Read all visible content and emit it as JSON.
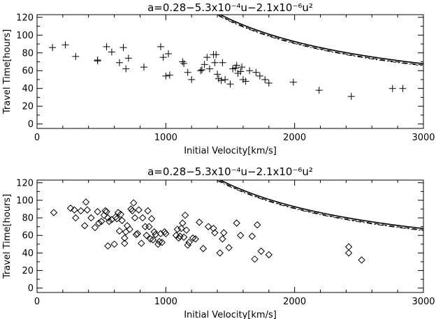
{
  "chart_data": [
    {
      "type": "scatter",
      "title": "a=0.28−5.3x10⁻⁴u−2.1x10⁻⁶u²",
      "xlabel": "Initial Velocity[km/s]",
      "ylabel": "Travel Time[hours]",
      "xlim": [
        0,
        3000
      ],
      "ylim": [
        -5,
        123
      ],
      "xticks": [
        "0",
        "1000",
        "2000",
        "3000"
      ],
      "yticks": [
        "0",
        "20",
        "40",
        "60",
        "80",
        "100",
        "120"
      ],
      "marker": "plus",
      "points": [
        [
          120,
          86
        ],
        [
          220,
          89
        ],
        [
          300,
          76
        ],
        [
          470,
          71
        ],
        [
          470,
          72
        ],
        [
          540,
          87
        ],
        [
          580,
          81
        ],
        [
          640,
          69
        ],
        [
          670,
          86
        ],
        [
          690,
          62
        ],
        [
          710,
          74
        ],
        [
          830,
          64
        ],
        [
          960,
          87
        ],
        [
          980,
          75
        ],
        [
          1000,
          54
        ],
        [
          1020,
          79
        ],
        [
          1030,
          55
        ],
        [
          1130,
          70
        ],
        [
          1140,
          68
        ],
        [
          1170,
          58
        ],
        [
          1200,
          50
        ],
        [
          1270,
          60
        ],
        [
          1280,
          61
        ],
        [
          1300,
          67
        ],
        [
          1320,
          75
        ],
        [
          1340,
          62
        ],
        [
          1370,
          78
        ],
        [
          1380,
          69
        ],
        [
          1390,
          78
        ],
        [
          1400,
          56
        ],
        [
          1410,
          51
        ],
        [
          1430,
          49
        ],
        [
          1440,
          69
        ],
        [
          1460,
          50
        ],
        [
          1500,
          45
        ],
        [
          1520,
          62
        ],
        [
          1540,
          63
        ],
        [
          1550,
          66
        ],
        [
          1560,
          57
        ],
        [
          1580,
          59
        ],
        [
          1590,
          64
        ],
        [
          1600,
          50
        ],
        [
          1620,
          48
        ],
        [
          1650,
          60
        ],
        [
          1700,
          58
        ],
        [
          1730,
          54
        ],
        [
          1770,
          50
        ],
        [
          1800,
          46
        ],
        [
          1990,
          47
        ],
        [
          2190,
          38
        ],
        [
          2440,
          31
        ],
        [
          2760,
          40
        ],
        [
          2840,
          40
        ]
      ],
      "curves": [
        {
          "style": "solid"
        },
        {
          "style": "dashed"
        },
        {
          "style": "dash-dot"
        }
      ]
    },
    {
      "type": "scatter",
      "title": "a=0.28−5.3x10⁻⁴u−2.1x10⁻⁶u²",
      "xlabel": "Initial Velocity[km/s]",
      "ylabel": "Travel Time[hours]",
      "xlim": [
        0,
        3000
      ],
      "ylim": [
        -5,
        123
      ],
      "xticks": [
        "0",
        "1000",
        "2000",
        "3000"
      ],
      "yticks": [
        "0",
        "20",
        "40",
        "60",
        "80",
        "100",
        "120"
      ],
      "marker": "diamond",
      "points": [
        [
          130,
          86
        ],
        [
          260,
          91
        ],
        [
          290,
          89
        ],
        [
          300,
          80
        ],
        [
          340,
          88
        ],
        [
          370,
          71
        ],
        [
          380,
          98
        ],
        [
          390,
          89
        ],
        [
          420,
          80
        ],
        [
          450,
          69
        ],
        [
          470,
          87
        ],
        [
          480,
          74
        ],
        [
          500,
          76
        ],
        [
          520,
          83
        ],
        [
          530,
          88
        ],
        [
          540,
          87
        ],
        [
          550,
          80
        ],
        [
          550,
          48
        ],
        [
          560,
          76
        ],
        [
          580,
          78
        ],
        [
          600,
          50
        ],
        [
          610,
          81
        ],
        [
          620,
          79
        ],
        [
          630,
          86
        ],
        [
          640,
          65
        ],
        [
          650,
          84
        ],
        [
          660,
          77
        ],
        [
          680,
          57
        ],
        [
          680,
          51
        ],
        [
          690,
          64
        ],
        [
          700,
          71
        ],
        [
          720,
          67
        ],
        [
          730,
          90
        ],
        [
          740,
          88
        ],
        [
          750,
          97
        ],
        [
          760,
          80
        ],
        [
          770,
          61
        ],
        [
          780,
          62
        ],
        [
          790,
          89
        ],
        [
          810,
          51
        ],
        [
          820,
          80
        ],
        [
          840,
          70
        ],
        [
          850,
          60
        ],
        [
          860,
          88
        ],
        [
          870,
          70
        ],
        [
          880,
          56
        ],
        [
          890,
          79
        ],
        [
          900,
          55
        ],
        [
          910,
          64
        ],
        [
          920,
          61
        ],
        [
          940,
          50
        ],
        [
          950,
          53
        ],
        [
          960,
          62
        ],
        [
          970,
          52
        ],
        [
          990,
          64
        ],
        [
          1000,
          62
        ],
        [
          1080,
          60
        ],
        [
          1090,
          67
        ],
        [
          1100,
          57
        ],
        [
          1110,
          59
        ],
        [
          1120,
          68
        ],
        [
          1130,
          74
        ],
        [
          1140,
          58
        ],
        [
          1150,
          83
        ],
        [
          1160,
          66
        ],
        [
          1170,
          49
        ],
        [
          1180,
          52
        ],
        [
          1210,
          57
        ],
        [
          1230,
          56
        ],
        [
          1260,
          75
        ],
        [
          1290,
          45
        ],
        [
          1330,
          70
        ],
        [
          1370,
          68
        ],
        [
          1380,
          63
        ],
        [
          1420,
          40
        ],
        [
          1440,
          56
        ],
        [
          1450,
          63
        ],
        [
          1490,
          46
        ],
        [
          1550,
          74
        ],
        [
          1580,
          60
        ],
        [
          1670,
          59
        ],
        [
          1690,
          33
        ],
        [
          1710,
          72
        ],
        [
          1740,
          42
        ],
        [
          1800,
          38
        ],
        [
          2420,
          47
        ],
        [
          2420,
          40
        ],
        [
          2520,
          32
        ]
      ],
      "curves": [
        {
          "style": "solid"
        },
        {
          "style": "dashed"
        },
        {
          "style": "dash-dot"
        }
      ]
    }
  ]
}
